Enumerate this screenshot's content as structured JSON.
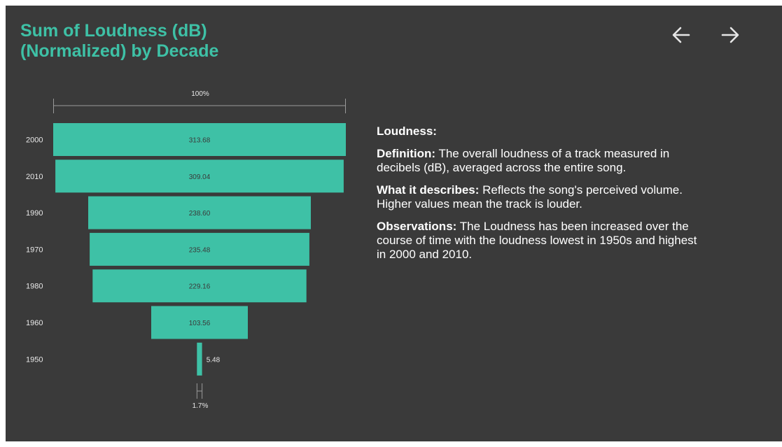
{
  "header": {
    "title_line1": "Sum of Loudness (dB)",
    "title_line2": "(Normalized) by Decade"
  },
  "nav": {
    "prev_icon": "arrow-left-icon",
    "next_icon": "arrow-right-icon"
  },
  "colors": {
    "accent": "#3ec1a6",
    "background": "#3a3a3a"
  },
  "chart_data": {
    "type": "bar",
    "subtype": "funnel",
    "categories": [
      "2000",
      "2010",
      "1990",
      "1970",
      "1980",
      "1960",
      "1950"
    ],
    "values": [
      313.68,
      309.04,
      238.6,
      235.48,
      229.16,
      103.56,
      5.48
    ],
    "value_labels": [
      "313.68",
      "309.04",
      "238.60",
      "235.48",
      "229.16",
      "103.56",
      "5.48"
    ],
    "top_percent_label": "100%",
    "bottom_percent_label": "1.7%",
    "title": "Sum of Loudness (dB) (Normalized) by Decade"
  },
  "panel": {
    "heading": "Loudness:",
    "definition_label": "Definition:",
    "definition_text": " The overall loudness of a track measured in decibels (dB), averaged across the entire song.",
    "describes_label": "What it describes:",
    "describes_text": " Reflects the song's perceived volume. Higher values mean the track is louder.",
    "observations_label": "Observations:",
    "observations_text": " The Loudness has been increased over the course of time with the loudness lowest in 1950s and highest in 2000 and 2010."
  }
}
